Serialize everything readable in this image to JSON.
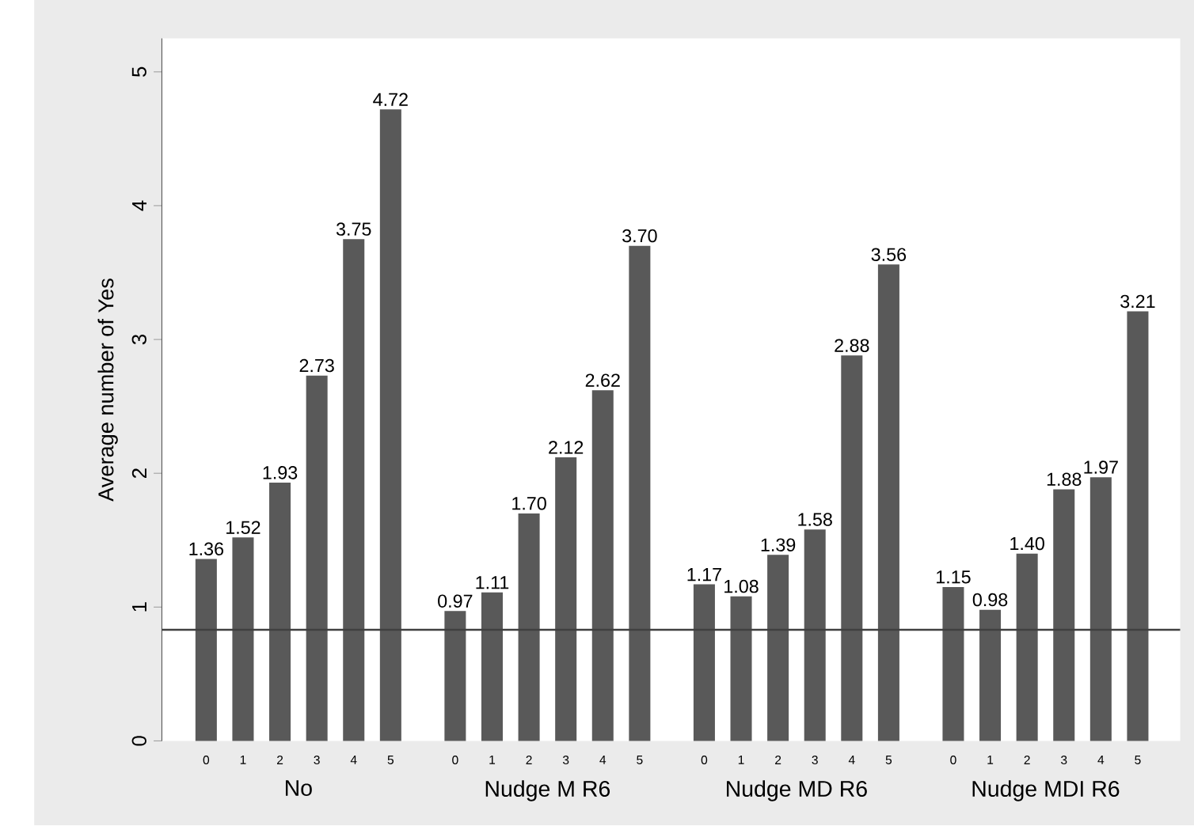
{
  "chart_data": {
    "type": "bar",
    "ylabel": "Average number of Yes",
    "categories": [
      "No",
      "Nudge M R6",
      "Nudge MD R6",
      "Nudge MDI R6"
    ],
    "series": [
      {
        "name": "0",
        "color": "#595959",
        "values": [
          1.36,
          0.97,
          1.17,
          1.15
        ],
        "value_labels": [
          "1.36",
          "0.97",
          "1.17",
          "1.15"
        ]
      },
      {
        "name": "1",
        "color": "#595959",
        "values": [
          1.52,
          1.11,
          1.08,
          0.98
        ],
        "value_labels": [
          "1.52",
          "1.11",
          "1.08",
          "0.98"
        ]
      },
      {
        "name": "2",
        "color": "#595959",
        "values": [
          1.93,
          1.7,
          1.39,
          1.4
        ],
        "value_labels": [
          "1.93",
          "1.70",
          "1.39",
          "1.40"
        ]
      },
      {
        "name": "3",
        "color": "#595959",
        "values": [
          2.73,
          2.12,
          1.58,
          1.88
        ],
        "value_labels": [
          "2.73",
          "2.12",
          "1.58",
          "1.88"
        ]
      },
      {
        "name": "4",
        "color": "#595959",
        "values": [
          3.75,
          2.62,
          2.88,
          1.97
        ],
        "value_labels": [
          "3.75",
          "2.62",
          "2.88",
          "1.97"
        ]
      },
      {
        "name": "5",
        "color": "#595959",
        "values": [
          4.72,
          3.7,
          3.56,
          3.21
        ],
        "value_labels": [
          "4.72",
          "3.70",
          "3.56",
          "3.21"
        ]
      }
    ],
    "ylim": [
      0,
      5.25
    ],
    "yticks": [
      0,
      1,
      2,
      3,
      4,
      5
    ],
    "ref_lines": [
      {
        "axis": "y",
        "value": 0.83,
        "color": "#404040"
      }
    ],
    "grid": false,
    "legend": false
  }
}
